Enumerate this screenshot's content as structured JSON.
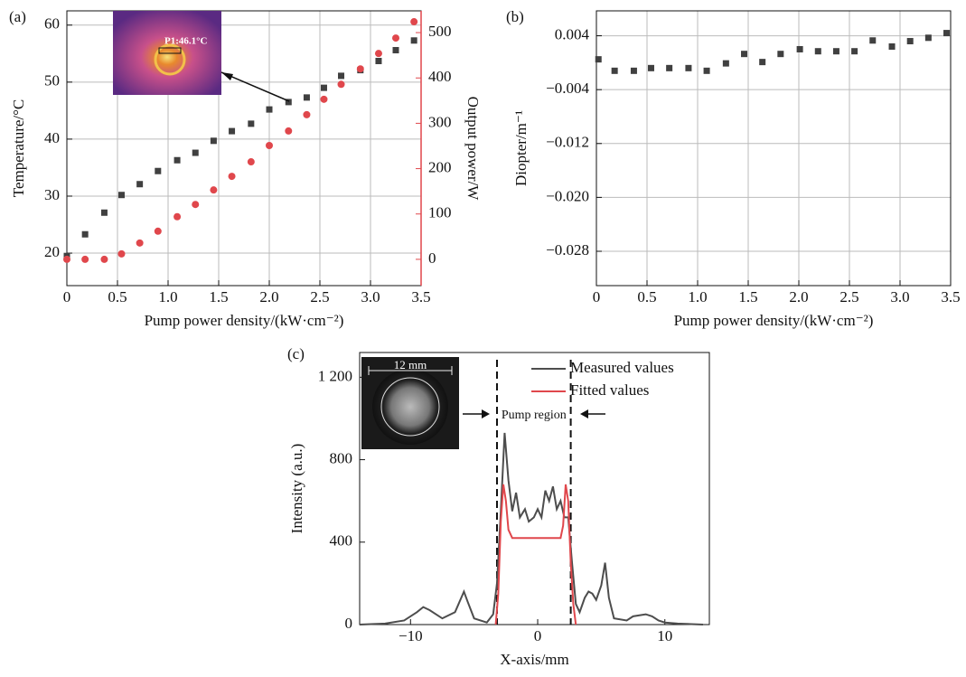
{
  "chart_data": [
    {
      "type": "scatter",
      "panel": "(a)",
      "inset_label": "P1:46.1°C",
      "xlabel": "Pump power density/(kW·cm⁻²)",
      "ylabel": "Temperature/°C",
      "y2label": "Output power/W",
      "xlim": [
        0,
        3.5
      ],
      "xticks": [
        0,
        0.5,
        {
          "value": 1,
          "label": "1.0"
        },
        1.5,
        {
          "value": 2,
          "label": "2.0"
        },
        2.5,
        {
          "value": 3,
          "label": "3.0"
        },
        3.5
      ],
      "ylim": [
        14.3,
        62.5
      ],
      "yticks": [
        20,
        30,
        40,
        50,
        60
      ],
      "y2lim": [
        -58,
        548
      ],
      "y2ticks": [
        0,
        100,
        200,
        300,
        400,
        500
      ],
      "grid": true,
      "x": [
        0,
        0.18,
        0.37,
        0.54,
        0.72,
        0.9,
        1.09,
        1.27,
        1.45,
        1.63,
        1.82,
        2.0,
        2.19,
        2.37,
        2.54,
        2.71,
        2.9,
        3.08,
        3.25,
        3.43
      ],
      "series": [
        {
          "color": "#404040",
          "marker": "square",
          "values": [
            19.5,
            23.3,
            27.1,
            30.2,
            32.1,
            34.4,
            36.3,
            37.6,
            39.7,
            41.4,
            42.7,
            45.2,
            46.5,
            47.3,
            49.0,
            51.1,
            52.1,
            53.7,
            55.6,
            57.3
          ]
        },
        {
          "color": "#e0474c",
          "marker": "circle",
          "axis": "y2",
          "values": [
            0,
            0,
            0,
            12,
            36,
            62,
            94,
            121,
            153,
            183,
            215,
            251,
            283,
            319,
            353,
            386,
            420,
            454,
            488,
            524
          ]
        }
      ]
    },
    {
      "type": "scatter",
      "panel": "(b)",
      "xlabel": "Pump power density/(kW·cm⁻²)",
      "ylabel": "Diopter/m⁻¹",
      "xlim": [
        0,
        3.5
      ],
      "xticks": [
        0,
        0.5,
        {
          "value": 1,
          "label": "1.0"
        },
        1.5,
        {
          "value": 2,
          "label": "2.0"
        },
        2.5,
        {
          "value": 3,
          "label": "3.0"
        },
        3.5
      ],
      "ylim": [
        -0.0331,
        0.0077
      ],
      "yticks": [
        {
          "value": -0.028,
          "label": "−0.028"
        },
        {
          "value": -0.02,
          "label": "−0.020"
        },
        {
          "value": -0.012,
          "label": "−0.012"
        },
        {
          "value": -0.004,
          "label": "−0.004"
        },
        0.004
      ],
      "grid": true,
      "x": [
        0.02,
        0.18,
        0.37,
        0.54,
        0.72,
        0.91,
        1.09,
        1.28,
        1.46,
        1.64,
        1.82,
        2.01,
        2.19,
        2.37,
        2.55,
        2.73,
        2.92,
        3.1,
        3.28,
        3.46
      ],
      "series": [
        {
          "color": "#404040",
          "marker": "square",
          "values": [
            0.0005,
            -0.0012,
            -0.0012,
            -0.0008,
            -0.0008,
            -0.0008,
            -0.0012,
            -0.0001,
            0.0013,
            0.0001,
            0.0013,
            0.002,
            0.0017,
            0.0017,
            0.0017,
            0.0033,
            0.0024,
            0.0032,
            0.0037,
            0.0044
          ]
        }
      ]
    },
    {
      "type": "line",
      "panel": "(c)",
      "inset_label": "12 mm",
      "region_label": "Pump region",
      "region": [
        -3.2,
        2.6
      ],
      "xlabel": "X-axis/mm",
      "ylabel": "Intensity (a.u.)",
      "xlim": [
        -14,
        13.5
      ],
      "xticks": [
        {
          "value": -10,
          "label": "−10"
        },
        0,
        10
      ],
      "ylim": [
        0,
        1320
      ],
      "yticks": [
        0,
        400,
        800,
        {
          "value": 1200,
          "label": "1 200"
        }
      ],
      "grid": false,
      "series": [
        {
          "name": "Measured values",
          "color": "#4d4d4d",
          "x": [
            -14,
            -12,
            -10.5,
            -9.5,
            -9,
            -8.5,
            -7.5,
            -6.5,
            -5.8,
            -5.5,
            -5,
            -4,
            -3.5,
            -3.2,
            -2.9,
            -2.6,
            -2.3,
            -2,
            -1.7,
            -1.4,
            -1,
            -0.7,
            -0.3,
            0,
            0.3,
            0.6,
            0.9,
            1.2,
            1.5,
            1.8,
            2.1,
            2.4,
            2.7,
            3,
            3.3,
            3.7,
            4,
            4.3,
            4.6,
            5,
            5.3,
            5.6,
            6,
            7,
            7.5,
            8.5,
            9,
            9.5,
            10,
            11,
            13
          ],
          "values": [
            0,
            5,
            20,
            60,
            85,
            70,
            30,
            60,
            160,
            110,
            30,
            10,
            50,
            200,
            550,
            930,
            700,
            550,
            640,
            520,
            560,
            500,
            520,
            560,
            520,
            650,
            600,
            670,
            560,
            600,
            520,
            520,
            300,
            100,
            60,
            130,
            160,
            150,
            120,
            190,
            300,
            130,
            30,
            20,
            40,
            50,
            40,
            20,
            10,
            5,
            0
          ]
        },
        {
          "name": "Fitted values",
          "color": "#e0474c",
          "x": [
            -3.3,
            -3.1,
            -2.9,
            -2.7,
            -2.5,
            -2.3,
            -2,
            0,
            1.8,
            2.0,
            2.2,
            2.4,
            2.6,
            2.8,
            3.0
          ],
          "values": [
            0,
            150,
            500,
            680,
            600,
            460,
            420,
            420,
            420,
            480,
            680,
            600,
            300,
            100,
            0
          ]
        }
      ]
    }
  ]
}
